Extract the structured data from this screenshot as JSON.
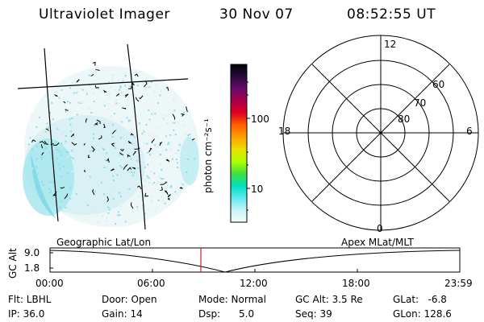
{
  "header": {
    "instrument": "Ultraviolet Imager",
    "date": "30 Nov 07",
    "time": "08:52:55 UT"
  },
  "colorbar": {
    "unit_label": "photon cm⁻²s⁻¹",
    "ticks": [
      "100",
      "10"
    ],
    "colors": [
      "#000000",
      "#2a0a3c",
      "#6a0a6a",
      "#a8004a",
      "#e00020",
      "#ff6000",
      "#ffa000",
      "#e8e000",
      "#b0ff00",
      "#40e040",
      "#00e0c0",
      "#60e8f0",
      "#c8f4f8",
      "#f4fcfc"
    ]
  },
  "map_labels": {
    "left": "Geographic Lat/Lon",
    "right": "Apex MLat/MLT"
  },
  "polar": {
    "mlt_labels": {
      "top": "12",
      "bottom": "0",
      "left": "18",
      "right": "6"
    },
    "lat_labels": [
      "60",
      "70",
      "80"
    ]
  },
  "orbit": {
    "axis_label": "GC Alt",
    "y_ticks": [
      "9.0",
      "1.8"
    ],
    "x_ticks": [
      "00:00",
      "06:00",
      "12:00",
      "18:00",
      "23:59"
    ]
  },
  "status": {
    "flt": "Flt: LBHL",
    "ip": "IP: 36.0",
    "door": "Door: Open",
    "gain": "Gain: 14",
    "mode": "Mode: Normal",
    "dsp": "Dsp:      5.0",
    "gcalt": "GC Alt: 3.5 Re",
    "seq": "Seq: 39",
    "glat": "GLat:   -6.8",
    "glon": "GLon: 128.6"
  },
  "colors": {
    "marker": "#cc2222",
    "image_haze": "#7fd8e4"
  }
}
